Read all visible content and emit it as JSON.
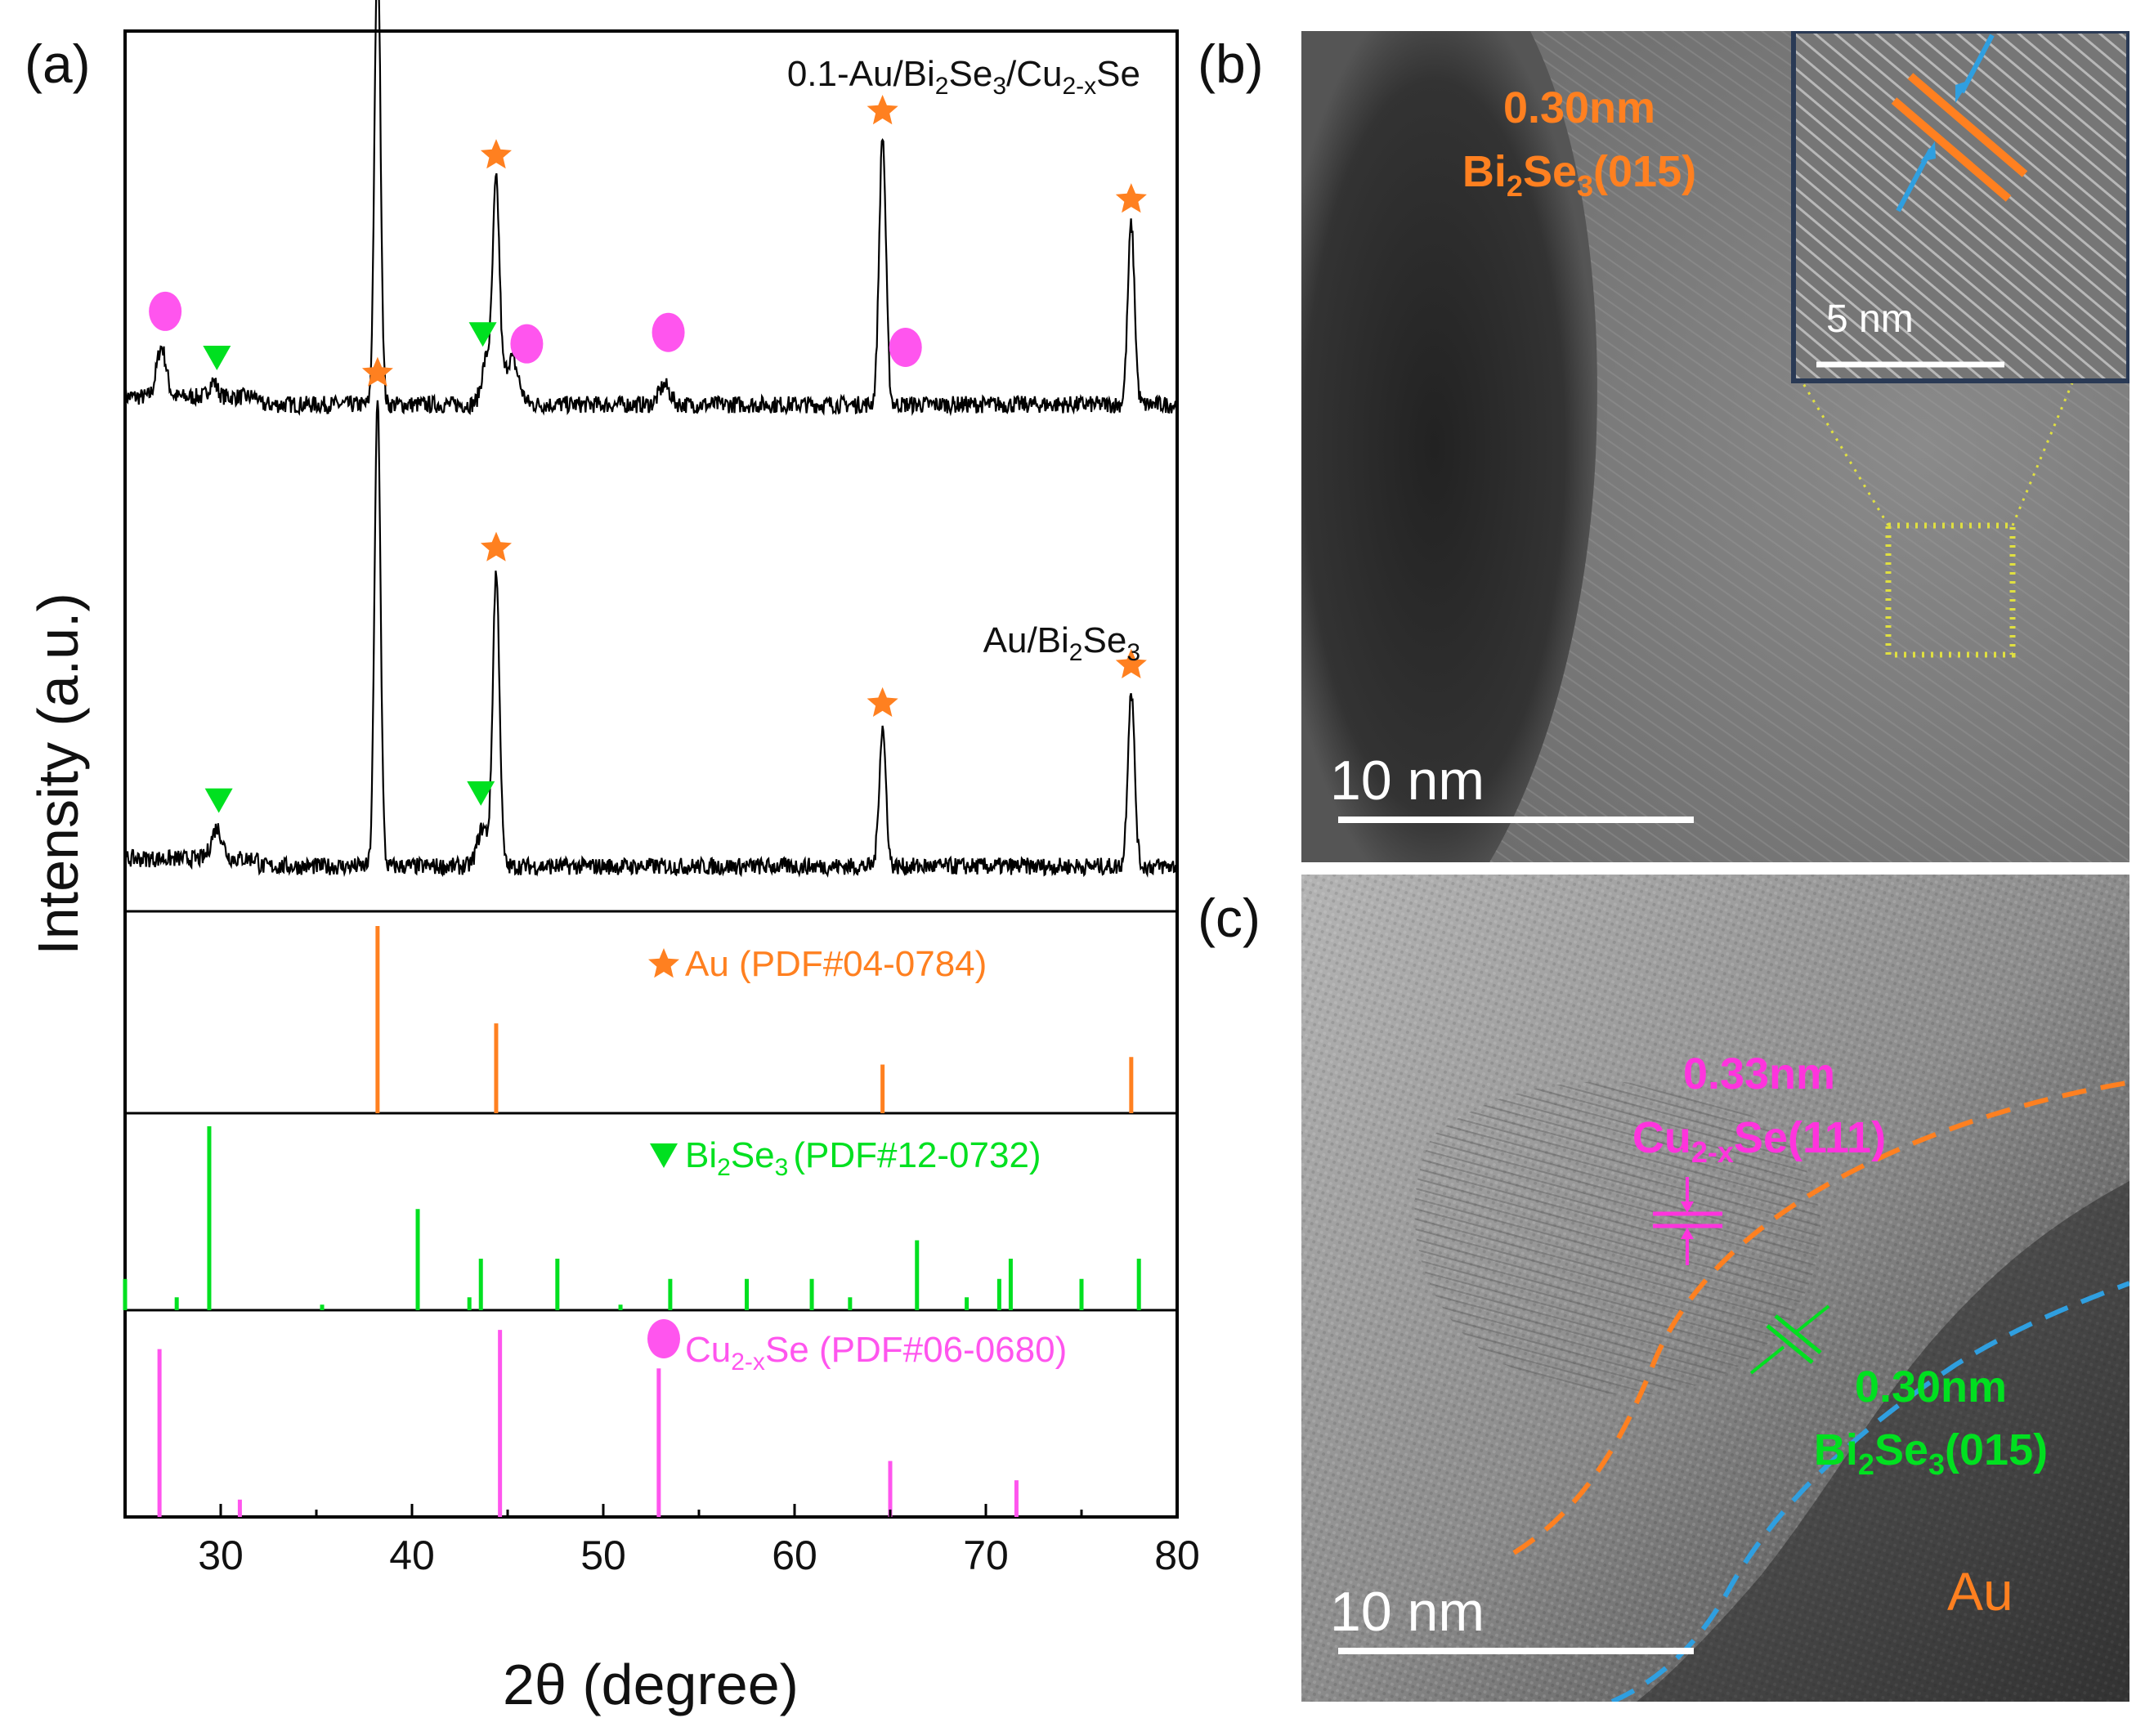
{
  "panel_labels": {
    "a": "(a)",
    "b": "(b)",
    "c": "(c)"
  },
  "colors": {
    "au": "#ff8020",
    "bi2se3": "#00e020",
    "cu2xse": "#ff55ee",
    "scale": "#ffffff",
    "trace": "#000000",
    "blue_dash": "#2f9fe0",
    "yellow_box": "#e0e040"
  },
  "chart_data": {
    "type": "line",
    "xlabel": "2θ (degree)",
    "ylabel": "Intensity (a.u.)",
    "xlim": [
      25,
      80
    ],
    "xticks": [
      30,
      40,
      50,
      60,
      70,
      80
    ],
    "xtick_labels": [
      "30",
      "40",
      "50",
      "60",
      "70",
      "80"
    ],
    "series": [
      {
        "name": "0.1-Au/Bi2Se3/Cu2-xSe",
        "label_main": "0.1-Au/Bi",
        "label_sub1": "2",
        "label_mid": "Se",
        "label_sub2": "3",
        "label_mid2": "/Cu",
        "label_sub3": "2-x",
        "label_end": "Se",
        "peaks": [
          {
            "x": 26.9,
            "h": 0.13,
            "w": 0.35
          },
          {
            "x": 29.6,
            "h": 0.04,
            "w": 0.3
          },
          {
            "x": 38.2,
            "h": 1.2,
            "w": 0.22
          },
          {
            "x": 43.9,
            "h": 0.12,
            "w": 0.35
          },
          {
            "x": 44.4,
            "h": 0.56,
            "w": 0.25
          },
          {
            "x": 45.2,
            "h": 0.12,
            "w": 0.5
          },
          {
            "x": 53.2,
            "h": 0.05,
            "w": 0.4
          },
          {
            "x": 64.6,
            "h": 0.7,
            "w": 0.25
          },
          {
            "x": 77.6,
            "h": 0.47,
            "w": 0.25
          }
        ],
        "markers": [
          {
            "type": "star",
            "x": 38.2
          },
          {
            "type": "star",
            "x": 44.4
          },
          {
            "type": "star",
            "x": 64.6
          },
          {
            "type": "star",
            "x": 77.6
          },
          {
            "type": "circle",
            "x": 27.1
          },
          {
            "type": "circle",
            "x": 46.0
          },
          {
            "type": "circle",
            "x": 53.4
          },
          {
            "type": "circle",
            "x": 65.8
          },
          {
            "type": "triangle",
            "x": 29.8
          },
          {
            "type": "triangle",
            "x": 43.7
          }
        ]
      },
      {
        "name": "Au/Bi2Se3",
        "label_main": "Au/Bi",
        "label_sub1": "2",
        "label_mid": "Se",
        "label_sub2": "3",
        "peaks": [
          {
            "x": 29.8,
            "h": 0.08,
            "w": 0.4
          },
          {
            "x": 38.2,
            "h": 1.22,
            "w": 0.22
          },
          {
            "x": 43.7,
            "h": 0.1,
            "w": 0.4
          },
          {
            "x": 44.4,
            "h": 0.76,
            "w": 0.25
          },
          {
            "x": 64.6,
            "h": 0.36,
            "w": 0.25
          },
          {
            "x": 77.6,
            "h": 0.46,
            "w": 0.25
          }
        ],
        "markers": [
          {
            "type": "star",
            "x": 38.2
          },
          {
            "type": "star",
            "x": 44.4
          },
          {
            "type": "star",
            "x": 64.6
          },
          {
            "type": "star",
            "x": 77.6
          },
          {
            "type": "triangle",
            "x": 29.9
          },
          {
            "type": "triangle",
            "x": 43.6
          }
        ]
      }
    ],
    "references": [
      {
        "name": "Au (PDF#04-0784)",
        "label_text": "Au (PDF#04-0784)",
        "color": "#ff8020",
        "marker": "star",
        "lines": [
          {
            "x": 38.2,
            "h": 1.0
          },
          {
            "x": 44.4,
            "h": 0.48
          },
          {
            "x": 64.6,
            "h": 0.26
          },
          {
            "x": 77.6,
            "h": 0.3
          }
        ]
      },
      {
        "name": "Bi2Se3 (PDF#12-0732)",
        "label_main": "Bi",
        "label_sub1": "2",
        "label_mid": "Se",
        "label_sub2": "3",
        "label_end": "(PDF#12-0732)",
        "color": "#00e020",
        "marker": "triangle",
        "lines": [
          {
            "x": 25.0,
            "h": 0.17
          },
          {
            "x": 27.7,
            "h": 0.07
          },
          {
            "x": 29.4,
            "h": 1.0
          },
          {
            "x": 35.3,
            "h": 0.03
          },
          {
            "x": 40.3,
            "h": 0.55
          },
          {
            "x": 43.0,
            "h": 0.07
          },
          {
            "x": 43.6,
            "h": 0.28
          },
          {
            "x": 47.6,
            "h": 0.28
          },
          {
            "x": 50.9,
            "h": 0.03
          },
          {
            "x": 53.5,
            "h": 0.17
          },
          {
            "x": 57.5,
            "h": 0.17
          },
          {
            "x": 60.9,
            "h": 0.17
          },
          {
            "x": 62.9,
            "h": 0.07
          },
          {
            "x": 66.4,
            "h": 0.38
          },
          {
            "x": 69.0,
            "h": 0.07
          },
          {
            "x": 70.7,
            "h": 0.17
          },
          {
            "x": 71.3,
            "h": 0.28
          },
          {
            "x": 75.0,
            "h": 0.17
          },
          {
            "x": 78.0,
            "h": 0.28
          }
        ]
      },
      {
        "name": "Cu2-xSe (PDF#06-0680)",
        "label_main": "Cu",
        "label_sub1": "2-x",
        "label_mid": "Se (PDF#06-0680)",
        "color": "#ff55ee",
        "marker": "circle",
        "lines": [
          {
            "x": 26.8,
            "h": 0.87
          },
          {
            "x": 31.0,
            "h": 0.09
          },
          {
            "x": 44.6,
            "h": 0.97
          },
          {
            "x": 52.9,
            "h": 0.77
          },
          {
            "x": 65.0,
            "h": 0.29
          },
          {
            "x": 71.6,
            "h": 0.19
          }
        ]
      }
    ]
  },
  "tem_b": {
    "spacing_value": "0.30nm",
    "plane_main": "Bi",
    "plane_sub1": "2",
    "plane_mid": "Se",
    "plane_sub2": "3",
    "plane_end": "(015)",
    "scale_text": "10  nm",
    "inset_scale_text": "5  nm"
  },
  "tem_c": {
    "cu_spacing": "0.33nm",
    "cu_plane_main": "Cu",
    "cu_plane_sub": "2-x",
    "cu_plane_end": "Se(111)",
    "bi_spacing": "0.30nm",
    "bi_plane_main": "Bi",
    "bi_plane_sub1": "2",
    "bi_plane_mid": "Se",
    "bi_plane_sub2": "3",
    "bi_plane_end": "(015)",
    "au_label": "Au",
    "scale_text": "10  nm"
  }
}
